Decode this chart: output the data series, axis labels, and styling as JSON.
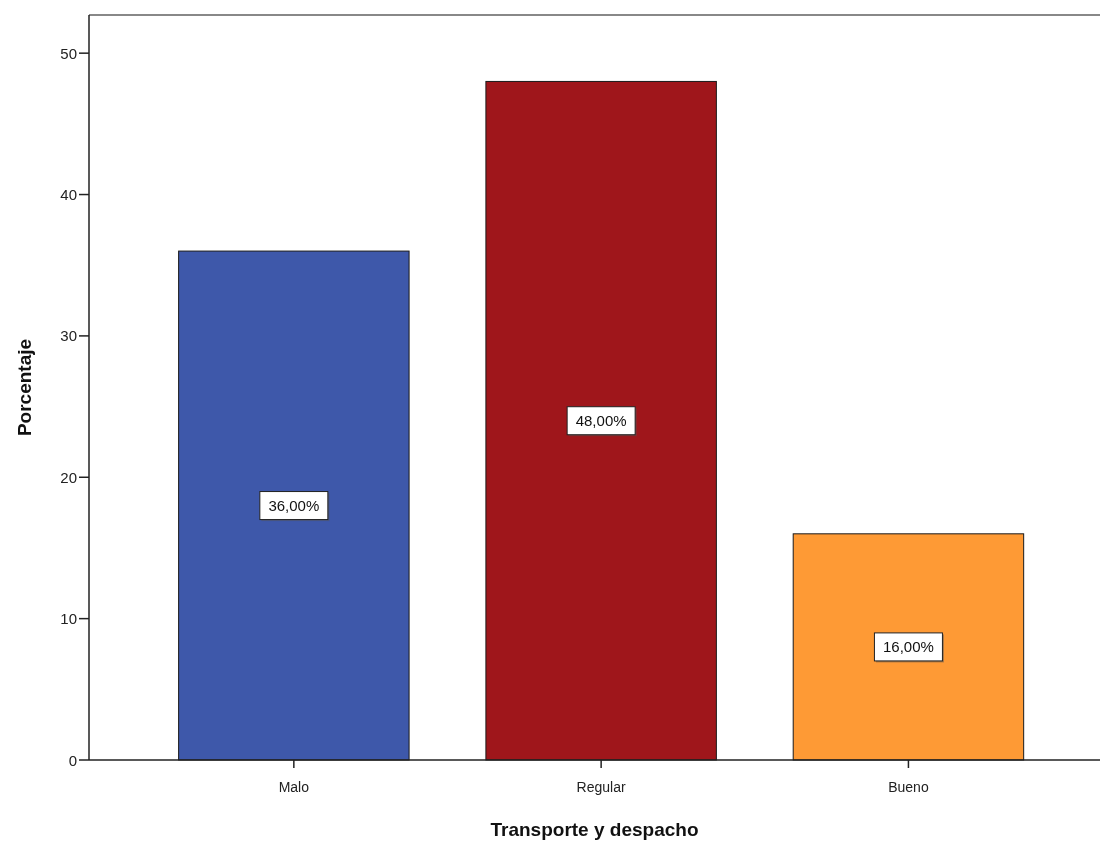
{
  "chart_data": {
    "type": "bar",
    "xlabel": "Transporte y despacho",
    "ylabel": "Porcentaje",
    "categories": [
      "Malo",
      "Regular",
      "Bueno"
    ],
    "values": [
      36,
      48,
      16
    ],
    "colors": [
      "#3e58aa",
      "#9f161b",
      "#fe9a35"
    ],
    "value_labels": [
      "36,00%",
      "48,00%",
      "16,00%"
    ],
    "ylim": [
      0,
      52.7
    ],
    "yticks": [
      0,
      10,
      20,
      30,
      40,
      50
    ]
  }
}
